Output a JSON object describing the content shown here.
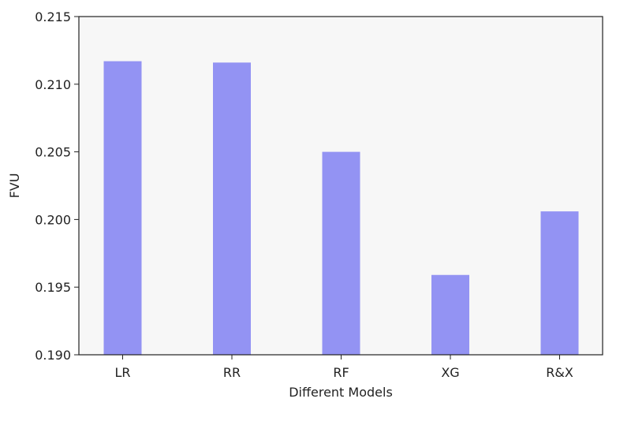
{
  "chart_data": {
    "type": "bar",
    "categories": [
      "LR",
      "RR",
      "RF",
      "XG",
      "R&X"
    ],
    "values": [
      0.2117,
      0.2116,
      0.205,
      0.1959,
      0.2006
    ],
    "xlabel": "Different Models",
    "ylabel": "FVU",
    "ylim": [
      0.19,
      0.215
    ],
    "yticks": [
      "0.190",
      "0.195",
      "0.200",
      "0.205",
      "0.210",
      "0.215"
    ],
    "grid": false,
    "bar_color": "#9393f3",
    "axes_facecolor": "#f7f7f7"
  }
}
